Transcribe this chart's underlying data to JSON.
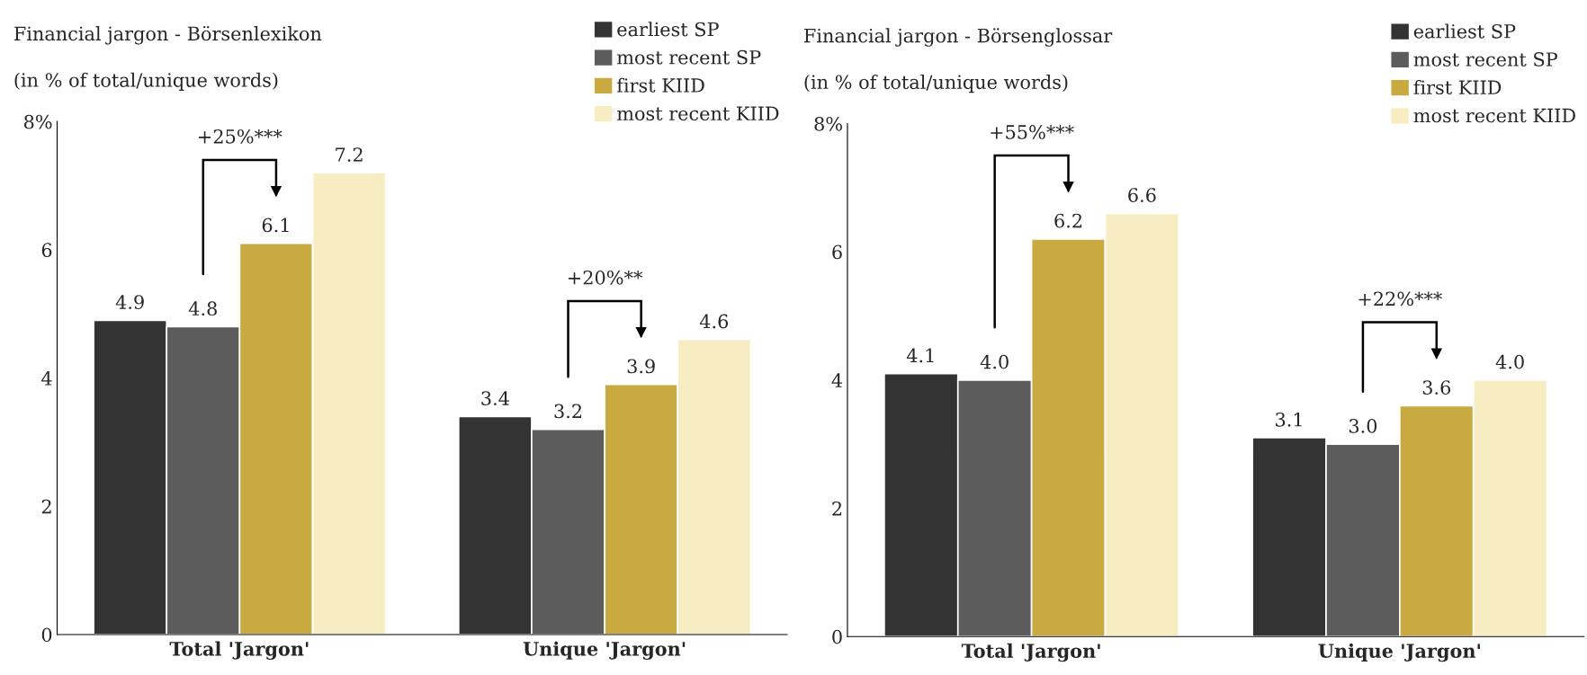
{
  "chart_data": [
    {
      "type": "bar",
      "title": "Financial jargon - Börsenlexikon",
      "subtitle": "(in % of total/unique words)",
      "categories": [
        "Total 'Jargon'",
        "Unique 'Jargon'"
      ],
      "series": [
        {
          "name": "earliest SP",
          "color": "#333333",
          "values": [
            4.9,
            3.4
          ]
        },
        {
          "name": "most recent SP",
          "color": "#5c5c5c",
          "values": [
            4.8,
            3.2
          ]
        },
        {
          "name": "first KIID",
          "color": "#c8aa41",
          "values": [
            6.1,
            3.9
          ]
        },
        {
          "name": "most recent KIID",
          "color": "#f8edc2",
          "values": [
            7.2,
            4.6
          ]
        }
      ],
      "ylim": [
        0,
        8
      ],
      "yticks": [
        0,
        2,
        4,
        6,
        {
          "value": 8,
          "label": "8%"
        }
      ],
      "data_labels": true,
      "grid": false,
      "legend": "top right",
      "annotations": [
        "+25%***",
        "+20%**"
      ]
    },
    {
      "type": "bar",
      "title": "Financial jargon - Börsenglossar",
      "subtitle": "(in % of total/unique words)",
      "categories": [
        "Total 'Jargon'",
        "Unique 'Jargon'"
      ],
      "series": [
        {
          "name": "earliest SP",
          "color": "#333333",
          "values": [
            4.1,
            3.1
          ]
        },
        {
          "name": "most recent SP",
          "color": "#5c5c5c",
          "values": [
            4.0,
            3.0
          ],
          "value_labels": [
            "4.0",
            "3.0"
          ]
        },
        {
          "name": "first KIID",
          "color": "#c8aa41",
          "values": [
            6.2,
            3.6
          ]
        },
        {
          "name": "most recent KIID",
          "color": "#f8edc2",
          "values": [
            6.6,
            4.0
          ],
          "value_labels": [
            "6.6",
            "4.0"
          ]
        }
      ],
      "ylim": [
        0,
        8
      ],
      "yticks": [
        0,
        2,
        4,
        6,
        {
          "value": 8,
          "label": "8%"
        }
      ],
      "data_labels": true,
      "grid": false,
      "legend": "top right",
      "annotations": [
        "+55%***",
        "+22%***"
      ]
    }
  ]
}
